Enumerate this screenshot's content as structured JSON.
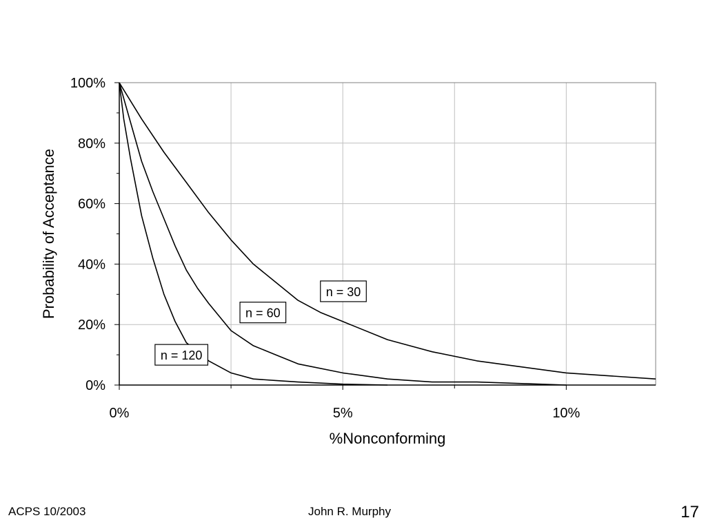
{
  "slide": {
    "footer_left": "ACPS 10/2003",
    "footer_center": "John R. Murphy",
    "page_number": "17"
  },
  "chart_data": {
    "type": "line",
    "title": "",
    "xlabel": "%Nonconforming",
    "ylabel": "Probability of Acceptance",
    "xlim": [
      0,
      12
    ],
    "ylim": [
      0,
      100
    ],
    "x_ticks": [
      0,
      5,
      10
    ],
    "x_tick_labels": [
      "0%",
      "5%",
      "10%"
    ],
    "y_ticks": [
      0,
      20,
      40,
      60,
      80,
      100
    ],
    "y_tick_labels": [
      "0%",
      "20%",
      "40%",
      "60%",
      "80%",
      "100%"
    ],
    "grid": true,
    "line_color": "#000000",
    "grid_color": "#bfbfbf",
    "series": [
      {
        "name": "n = 30",
        "x": [
          0,
          0.5,
          1,
          1.5,
          2,
          2.5,
          3,
          3.5,
          4,
          4.5,
          5,
          6,
          7,
          8,
          9,
          10,
          11,
          12
        ],
        "y": [
          100,
          88,
          77,
          67,
          57,
          48,
          40,
          34,
          28,
          24,
          21,
          15,
          11,
          8,
          6,
          4,
          3,
          2
        ]
      },
      {
        "name": "n = 60",
        "x": [
          0,
          0.25,
          0.5,
          0.75,
          1,
          1.25,
          1.5,
          1.75,
          2,
          2.5,
          3,
          3.5,
          4,
          5,
          6,
          7,
          8,
          9,
          10
        ],
        "y": [
          100,
          87,
          74,
          64,
          55,
          46,
          38,
          32,
          27,
          18,
          13,
          10,
          7,
          4,
          2,
          1,
          1,
          0.5,
          0
        ]
      },
      {
        "name": "n = 120",
        "x": [
          0,
          0.1,
          0.25,
          0.5,
          0.75,
          1,
          1.25,
          1.5,
          1.75,
          2,
          2.5,
          3,
          3.5,
          4,
          5,
          6
        ],
        "y": [
          100,
          88,
          75,
          56,
          42,
          30,
          21,
          14,
          11,
          8,
          4,
          2,
          1.5,
          1,
          0.3,
          0
        ]
      }
    ],
    "labels": [
      {
        "text": "n = 30",
        "x": 4.5,
        "y": 31
      },
      {
        "text": "n = 60",
        "x": 2.7,
        "y": 24
      },
      {
        "text": "n = 120",
        "x": 0.8,
        "y": 10
      }
    ]
  }
}
